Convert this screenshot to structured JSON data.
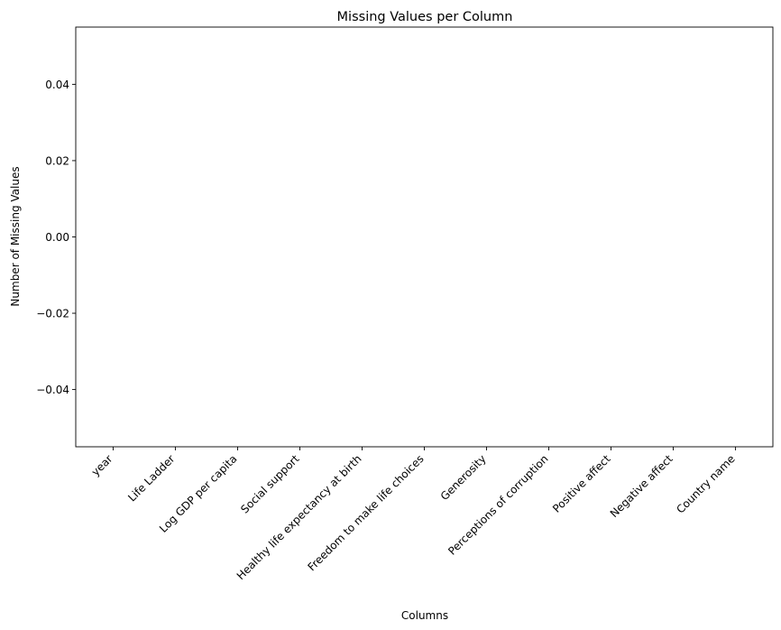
{
  "chart_data": {
    "type": "bar",
    "title": "Missing Values per Column",
    "xlabel": "Columns",
    "ylabel": "Number of Missing Values",
    "categories": [
      "year",
      "Life Ladder",
      "Log GDP per capita",
      "Social support",
      "Healthy life expectancy at birth",
      "Freedom to make life choices",
      "Generosity",
      "Perceptions of corruption",
      "Positive affect",
      "Negative affect",
      "Country name"
    ],
    "values": [
      0,
      0,
      0,
      0,
      0,
      0,
      0,
      0,
      0,
      0,
      0
    ],
    "ylim": [
      -0.055,
      0.055
    ],
    "yticks": [
      -0.04,
      -0.02,
      0.0,
      0.02,
      0.04
    ],
    "ytick_labels": [
      "−0.04",
      "−0.02",
      "0.00",
      "0.02",
      "0.04"
    ],
    "grid": false,
    "bar_color": "#1f77b4"
  }
}
